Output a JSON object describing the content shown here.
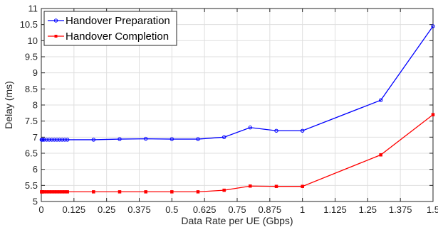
{
  "chart_data": {
    "type": "line",
    "xlabel": "Data Rate per UE (Gbps)",
    "ylabel": "Delay (ms)",
    "xlim": [
      0,
      1.5
    ],
    "ylim": [
      5,
      11
    ],
    "x_ticks": [
      "0",
      "0.125",
      "0.25",
      "0.375",
      "0.5",
      "0.625",
      "0.75",
      "0.875",
      "1",
      "1.125",
      "1.25",
      "1.375",
      "1.5"
    ],
    "x_tick_values": [
      0,
      0.125,
      0.25,
      0.375,
      0.5,
      0.625,
      0.75,
      0.875,
      1,
      1.125,
      1.25,
      1.375,
      1.5
    ],
    "y_ticks": [
      "5",
      "5.5",
      "6",
      "6.5",
      "7",
      "7.5",
      "8",
      "8.5",
      "9",
      "9.5",
      "10",
      "10.5",
      "11"
    ],
    "y_tick_values": [
      5,
      5.5,
      6,
      6.5,
      7,
      7.5,
      8,
      8.5,
      9,
      9.5,
      10,
      10.5,
      11
    ],
    "grid": true,
    "legend_position": "top-left",
    "series": [
      {
        "name": "Handover Preparation",
        "color": "#0000ff",
        "marker": "circle",
        "x": [
          0.001,
          0.002,
          0.005,
          0.01,
          0.02,
          0.03,
          0.04,
          0.05,
          0.06,
          0.07,
          0.08,
          0.09,
          0.1,
          0.2,
          0.3,
          0.4,
          0.5,
          0.6,
          0.7,
          0.8,
          0.9,
          1.0,
          1.3,
          1.5
        ],
        "values": [
          6.92,
          6.92,
          6.92,
          6.92,
          6.92,
          6.92,
          6.92,
          6.92,
          6.92,
          6.92,
          6.92,
          6.92,
          6.92,
          6.92,
          6.94,
          6.95,
          6.94,
          6.94,
          7.0,
          7.3,
          7.2,
          7.2,
          8.15,
          10.45
        ]
      },
      {
        "name": "Handover Completion",
        "color": "#ff0000",
        "marker": "square",
        "x": [
          0.001,
          0.002,
          0.005,
          0.01,
          0.02,
          0.03,
          0.04,
          0.05,
          0.06,
          0.07,
          0.08,
          0.09,
          0.1,
          0.2,
          0.3,
          0.4,
          0.5,
          0.6,
          0.7,
          0.8,
          0.9,
          1.0,
          1.3,
          1.5
        ],
        "values": [
          5.3,
          5.3,
          5.3,
          5.3,
          5.3,
          5.3,
          5.3,
          5.3,
          5.3,
          5.3,
          5.3,
          5.3,
          5.3,
          5.3,
          5.3,
          5.3,
          5.3,
          5.3,
          5.35,
          5.48,
          5.47,
          5.47,
          6.45,
          7.7
        ]
      }
    ]
  }
}
